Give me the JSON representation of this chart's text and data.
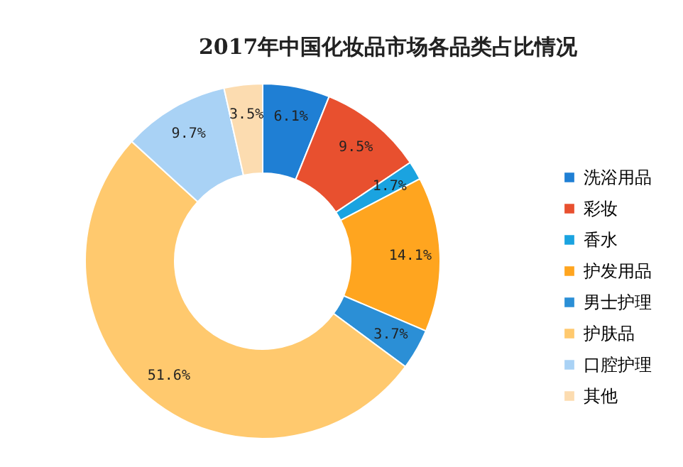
{
  "chart_data": {
    "type": "donut",
    "title": "2017年中国化妆品市场各品类占比情况",
    "categories": [
      "洗浴用品",
      "彩妆",
      "香水",
      "护发用品",
      "男士护理",
      "护肤品",
      "口腔护理",
      "其他"
    ],
    "values": [
      6.1,
      9.5,
      1.7,
      14.1,
      3.7,
      51.6,
      9.7,
      3.5
    ],
    "colors": [
      "#1f7fd4",
      "#e8502f",
      "#1aa3e0",
      "#ffa51f",
      "#2b8fd6",
      "#ffc96e",
      "#a9d2f5",
      "#fcdcb0"
    ],
    "value_labels": [
      "6.1%",
      "9.5%",
      "1.7%",
      "14.1%",
      "3.7%",
      "51.6%",
      "9.7%",
      "3.5%"
    ],
    "legend": "right"
  }
}
